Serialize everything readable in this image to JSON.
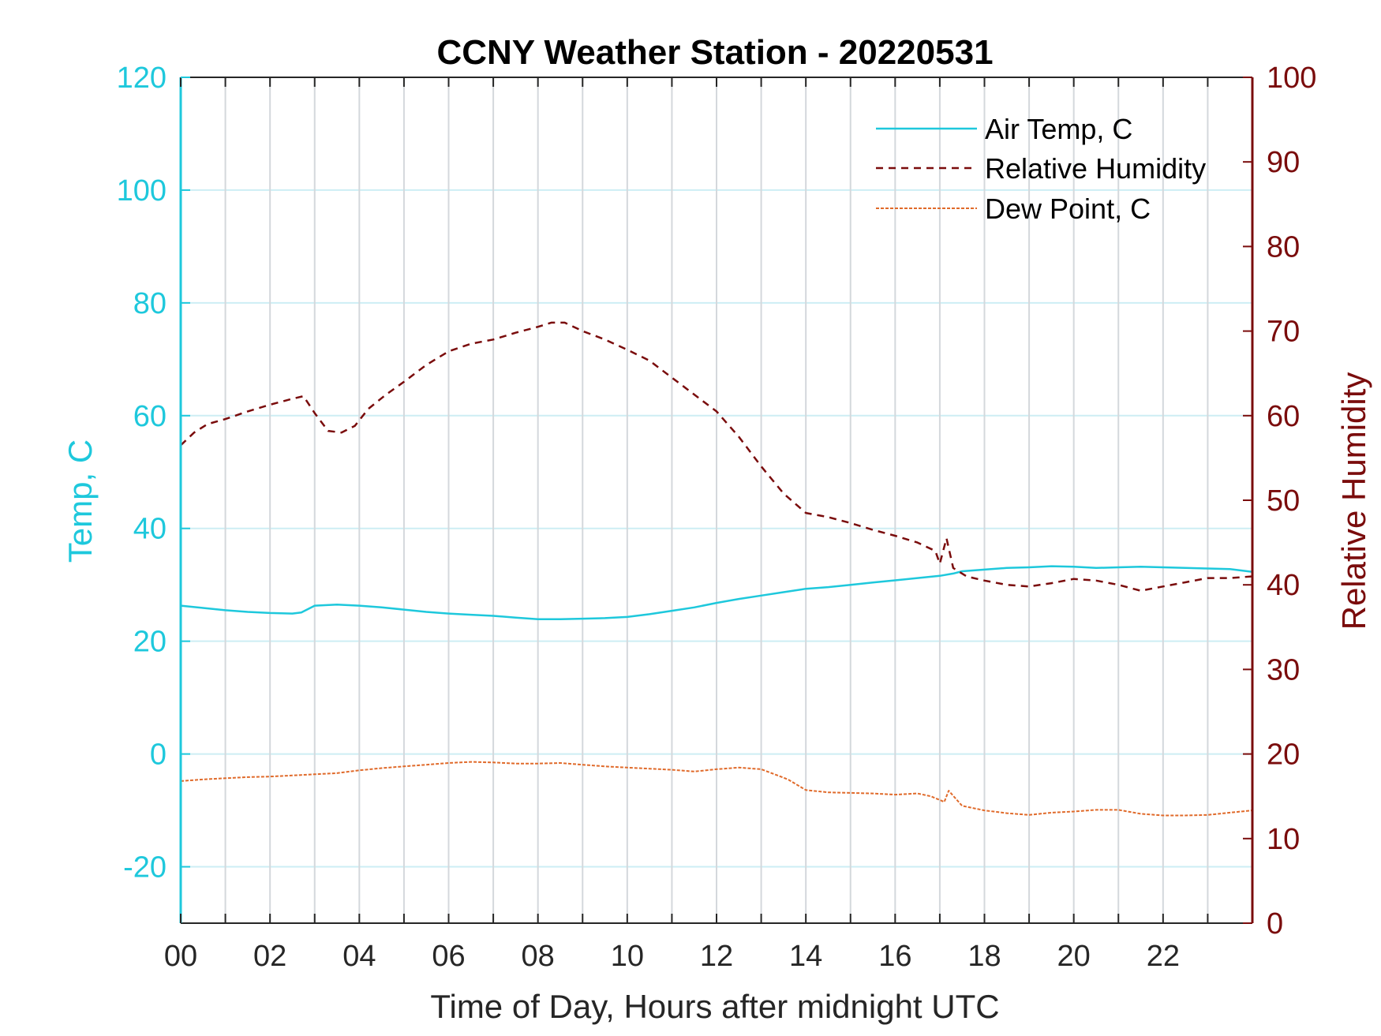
{
  "chart_data": {
    "type": "line",
    "title": "CCNY Weather Station - 20220531",
    "xlabel": "Time of Day, Hours after midnight UTC",
    "ylabel_left": "Temp, C",
    "ylabel_right": "Relative Humidity",
    "xlim": [
      0,
      24
    ],
    "ylim_left": [
      -30,
      120
    ],
    "ylim_right": [
      0,
      100
    ],
    "x_ticks": [
      0,
      2,
      4,
      6,
      8,
      10,
      12,
      14,
      16,
      18,
      20,
      22
    ],
    "x_tick_labels": [
      "00",
      "02",
      "04",
      "06",
      "08",
      "10",
      "12",
      "14",
      "16",
      "18",
      "20",
      "22"
    ],
    "y_left_ticks": [
      -20,
      0,
      20,
      40,
      60,
      80,
      100,
      120
    ],
    "y_right_ticks": [
      0,
      10,
      20,
      30,
      40,
      50,
      60,
      70,
      80,
      90,
      100
    ],
    "grid": true,
    "legend_position": "top-right",
    "colors": {
      "air_temp": "#1ec8dc",
      "humidity": "#7a0c0c",
      "dew_point": "#e06a2a",
      "left_axis": "#1ec8dc",
      "right_axis": "#7a0c0c",
      "grid_vertical": "#d4d8dc",
      "grid_horizontal": "#cdeef4"
    },
    "series": [
      {
        "name": "Air Temp, C",
        "axis": "left",
        "style": "solid",
        "x": [
          0,
          0.5,
          1,
          1.5,
          2,
          2.5,
          2.7,
          3,
          3.5,
          4,
          4.5,
          5,
          5.5,
          6,
          6.5,
          7,
          7.5,
          8,
          8.5,
          9,
          9.5,
          10,
          10.5,
          11,
          11.5,
          12,
          12.5,
          13,
          13.5,
          14,
          14.5,
          15,
          15.5,
          16,
          16.5,
          17,
          17.3,
          17.5,
          18,
          18.5,
          19,
          19.5,
          20,
          20.5,
          21,
          21.5,
          22,
          22.5,
          23,
          23.5,
          24
        ],
        "y": [
          26.3,
          25.9,
          25.5,
          25.2,
          25.0,
          24.9,
          25.1,
          26.3,
          26.5,
          26.3,
          26.0,
          25.6,
          25.2,
          24.9,
          24.7,
          24.5,
          24.2,
          23.9,
          23.9,
          24.0,
          24.1,
          24.3,
          24.8,
          25.4,
          26.0,
          26.8,
          27.5,
          28.1,
          28.7,
          29.3,
          29.6,
          30.0,
          30.4,
          30.8,
          31.2,
          31.6,
          32.0,
          32.4,
          32.7,
          33.0,
          33.1,
          33.3,
          33.2,
          33.0,
          33.1,
          33.2,
          33.1,
          33.0,
          32.9,
          32.8,
          32.3
        ]
      },
      {
        "name": "Relative Humidity",
        "axis": "right",
        "style": "dashed",
        "x": [
          0,
          0.3,
          0.6,
          1,
          1.5,
          2,
          2.5,
          2.75,
          3,
          3.3,
          3.6,
          3.9,
          4.2,
          4.6,
          5,
          5.5,
          6,
          6.5,
          7,
          7.5,
          8,
          8.3,
          8.6,
          9,
          9.5,
          10,
          10.5,
          11,
          11.5,
          12,
          12.5,
          13,
          13.5,
          14,
          14.5,
          15,
          15.5,
          16,
          16.5,
          16.9,
          17.0,
          17.15,
          17.3,
          17.6,
          18,
          18.5,
          19,
          19.5,
          20,
          20.5,
          21,
          21.5,
          22,
          22.5,
          23,
          23.5,
          24
        ],
        "y": [
          56.5,
          58,
          59,
          59.6,
          60.5,
          61.3,
          62,
          62.3,
          60.3,
          58.2,
          58.0,
          58.8,
          60.8,
          62.5,
          64.0,
          66.0,
          67.6,
          68.5,
          69.0,
          69.8,
          70.5,
          71.0,
          71.0,
          70.0,
          69.0,
          67.8,
          66.5,
          64.5,
          62.5,
          60.5,
          57.5,
          54.0,
          50.8,
          48.5,
          48.0,
          47.3,
          46.5,
          45.8,
          45.0,
          44.0,
          42.5,
          45.5,
          42.0,
          41.0,
          40.5,
          40.0,
          39.8,
          40.2,
          40.7,
          40.5,
          40.0,
          39.3,
          39.8,
          40.3,
          40.8,
          40.8,
          41.0
        ]
      },
      {
        "name": "Dew Point, C",
        "axis": "left",
        "style": "dashed",
        "x": [
          0,
          0.5,
          1,
          1.5,
          2,
          2.5,
          3,
          3.5,
          4,
          4.5,
          5,
          5.5,
          6,
          6.5,
          7,
          7.5,
          8,
          8.5,
          9,
          9.5,
          10,
          10.5,
          11,
          11.5,
          12,
          12.5,
          13,
          13.3,
          13.6,
          14,
          14.5,
          15,
          15.5,
          16,
          16.5,
          16.8,
          17.1,
          17.2,
          17.5,
          18,
          18.5,
          19,
          19.5,
          20,
          20.5,
          21,
          21.5,
          22,
          22.5,
          23,
          23.5,
          24
        ],
        "y": [
          -4.8,
          -4.5,
          -4.3,
          -4.1,
          -4.0,
          -3.8,
          -3.6,
          -3.4,
          -2.9,
          -2.5,
          -2.2,
          -1.9,
          -1.6,
          -1.4,
          -1.5,
          -1.7,
          -1.7,
          -1.6,
          -1.9,
          -2.2,
          -2.4,
          -2.6,
          -2.8,
          -3.1,
          -2.7,
          -2.4,
          -2.7,
          -3.6,
          -4.5,
          -6.4,
          -6.8,
          -6.9,
          -7.0,
          -7.2,
          -7.0,
          -7.5,
          -8.5,
          -6.5,
          -9.2,
          -10.0,
          -10.5,
          -10.8,
          -10.4,
          -10.2,
          -9.9,
          -9.9,
          -10.6,
          -10.9,
          -10.9,
          -10.8,
          -10.4,
          -10.0
        ]
      }
    ]
  }
}
